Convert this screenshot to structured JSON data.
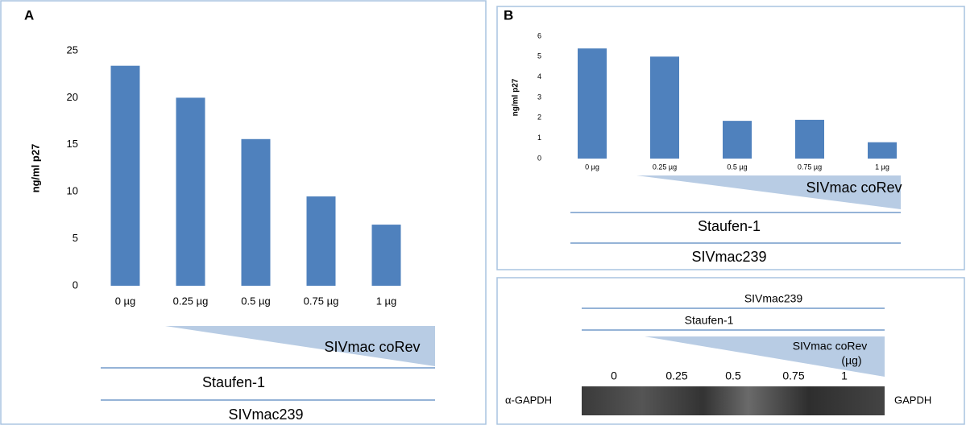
{
  "chart_data": [
    {
      "type": "bar",
      "panel_label": "A",
      "ylabel": "ng/ml p27",
      "categories": [
        "0 µg",
        "0.25 µg",
        "0.5 µg",
        "0.75 µg",
        "1 µg"
      ],
      "values": [
        23.4,
        20,
        15.6,
        9.5,
        6.5
      ],
      "color": "#4f81bd",
      "ylim": [
        0,
        25
      ],
      "yticks": [
        0,
        5,
        10,
        15,
        20,
        25
      ],
      "grid": false,
      "gradient_label": "SIVmac coRev",
      "bracket_labels": [
        "Staufen-1",
        "SIVmac239"
      ]
    },
    {
      "type": "bar",
      "panel_label": "B",
      "ylabel": "ng/ml p27",
      "categories": [
        "0 µg",
        "0.25 µg",
        "0.5 µg",
        "0.75 µg",
        "1 µg"
      ],
      "values": [
        5.4,
        5.0,
        1.85,
        1.9,
        0.8
      ],
      "color": "#4f81bd",
      "ylim": [
        0,
        6
      ],
      "yticks": [
        0,
        1,
        2,
        3,
        4,
        5,
        6
      ],
      "grid": false,
      "gradient_label": "SIVmac coRev",
      "bracket_labels": [
        "Staufen-1",
        "SIVmac239"
      ]
    }
  ],
  "blot": {
    "bracket_labels": [
      "SIVmac239",
      "Staufen-1"
    ],
    "gradient_label": [
      "SIVmac coRev",
      "(µg)"
    ],
    "lanes": [
      "0",
      "0.25",
      "0.5",
      "0.75",
      "1"
    ],
    "antibody": "α-GAPDH",
    "band": "GAPDH"
  }
}
